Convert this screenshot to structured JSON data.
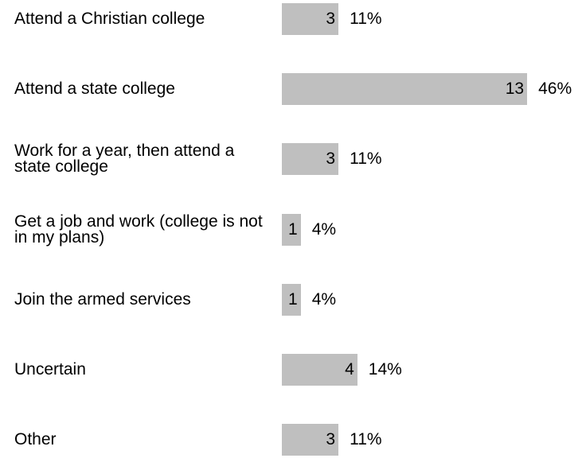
{
  "chart_data": {
    "type": "bar",
    "orientation": "horizontal",
    "categories": [
      "Attend a Christian college",
      "Attend a state college",
      "Work for a year, then attend a state college",
      "Get a job and work (college is not in my plans)",
      "Join the armed services",
      "Uncertain",
      "Other"
    ],
    "values": [
      3,
      13,
      3,
      1,
      1,
      4,
      3
    ],
    "percent_labels": [
      "11%",
      "46%",
      "11%",
      "4%",
      "4%",
      "14%",
      "11%"
    ],
    "bar_color": "#bfbfbf",
    "grid": false,
    "legend": "none"
  }
}
